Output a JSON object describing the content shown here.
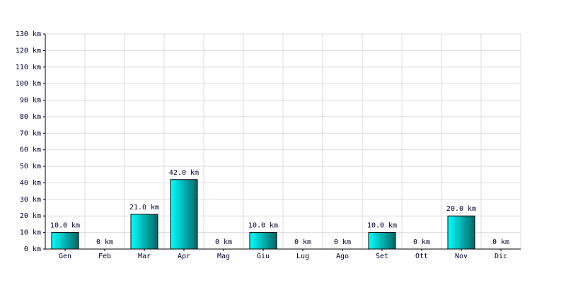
{
  "chart_data": {
    "type": "bar",
    "categories": [
      "Gen",
      "Feb",
      "Mar",
      "Apr",
      "Mag",
      "Giu",
      "Lug",
      "Ago",
      "Set",
      "Ott",
      "Nov",
      "Dic"
    ],
    "values": [
      10,
      0,
      21,
      42,
      0,
      10,
      0,
      0,
      10,
      0,
      20,
      0
    ],
    "value_labels": [
      "10.0 km",
      "0 km",
      "21.0 km",
      "42.0 km",
      "0 km",
      "10.0 km",
      "0 km",
      "0 km",
      "10.0 km",
      "0 km",
      "20.0 km",
      "0 km"
    ],
    "color": "#00cccc",
    "ylim": [
      0,
      130
    ],
    "yticks": [
      {
        "value": 0,
        "label": "0 km"
      },
      {
        "value": 10,
        "label": "10 km"
      },
      {
        "value": 20,
        "label": "20 km"
      },
      {
        "value": 30,
        "label": "30 km"
      },
      {
        "value": 40,
        "label": "40 km"
      },
      {
        "value": 50,
        "label": "50 km"
      },
      {
        "value": 60,
        "label": "60 km"
      },
      {
        "value": 70,
        "label": "70 km"
      },
      {
        "value": 80,
        "label": "80 km"
      },
      {
        "value": 90,
        "label": "90 km"
      },
      {
        "value": 100,
        "label": "100 km"
      },
      {
        "value": 110,
        "label": "110 km"
      },
      {
        "value": 120,
        "label": "120 km"
      },
      {
        "value": 130,
        "label": "130 km"
      }
    ],
    "grid": true
  }
}
